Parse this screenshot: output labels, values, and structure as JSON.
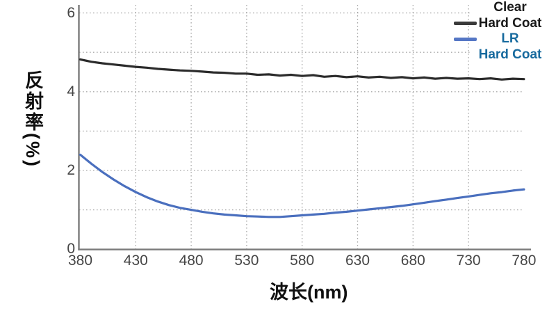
{
  "figure": {
    "background": "#ffffff"
  },
  "legend": {
    "entries": [
      {
        "id": "clear-hard-coat",
        "line1": "Clear",
        "line2": "Hard Coat",
        "swatch_color": "#3a3a3a",
        "text_color": "#1a1a1a"
      },
      {
        "id": "lr-hard-coat",
        "line1": "LR",
        "line2": "Hard Coat",
        "swatch_color": "#5577c5",
        "text_color": "#176a9e"
      }
    ]
  },
  "chart_data": {
    "type": "line",
    "title": "",
    "xlabel": "波长(nm)",
    "ylabel": "反射率(%)",
    "xlim": [
      380,
      780
    ],
    "ylim": [
      0,
      6
    ],
    "xticks": [
      380,
      430,
      480,
      530,
      580,
      630,
      680,
      730,
      780
    ],
    "yticks": [
      0,
      2,
      4,
      6
    ],
    "grid": true,
    "x_gridlines": [
      430,
      480,
      530,
      580,
      630,
      680,
      730
    ],
    "y_gridlines": [
      1,
      2,
      3,
      4,
      5,
      6
    ],
    "legend_position": "top-right",
    "x": [
      380,
      390,
      400,
      410,
      420,
      430,
      440,
      450,
      460,
      470,
      480,
      490,
      500,
      510,
      520,
      530,
      540,
      550,
      560,
      570,
      580,
      590,
      600,
      610,
      620,
      630,
      640,
      650,
      660,
      670,
      680,
      690,
      700,
      710,
      720,
      730,
      740,
      750,
      760,
      770,
      780
    ],
    "series": [
      {
        "name": "Clear Hard Coat",
        "id": "clear-hard-coat-curve",
        "color": "#2b2b2b",
        "values": [
          4.82,
          4.76,
          4.72,
          4.69,
          4.66,
          4.63,
          4.61,
          4.58,
          4.56,
          4.54,
          4.53,
          4.51,
          4.49,
          4.48,
          4.46,
          4.46,
          4.43,
          4.44,
          4.41,
          4.43,
          4.4,
          4.42,
          4.38,
          4.4,
          4.37,
          4.39,
          4.36,
          4.38,
          4.35,
          4.37,
          4.34,
          4.36,
          4.33,
          4.35,
          4.33,
          4.34,
          4.32,
          4.34,
          4.31,
          4.33,
          4.32
        ]
      },
      {
        "name": "LR Hard Coat",
        "id": "lr-hard-coat-curve",
        "color": "#4a6fbe",
        "values": [
          2.4,
          2.17,
          1.96,
          1.77,
          1.6,
          1.45,
          1.32,
          1.21,
          1.12,
          1.05,
          1.0,
          0.95,
          0.91,
          0.88,
          0.86,
          0.84,
          0.83,
          0.82,
          0.82,
          0.84,
          0.86,
          0.88,
          0.9,
          0.93,
          0.95,
          0.98,
          1.01,
          1.04,
          1.07,
          1.1,
          1.14,
          1.18,
          1.22,
          1.26,
          1.3,
          1.34,
          1.38,
          1.42,
          1.45,
          1.49,
          1.52
        ]
      }
    ]
  }
}
